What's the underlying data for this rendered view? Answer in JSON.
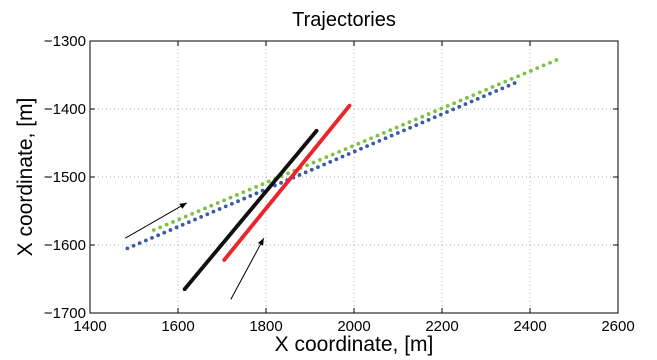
{
  "chart_data": {
    "type": "scatter",
    "title": "Trajectories",
    "xlabel": "X coordinate, [m]",
    "ylabel": "X coordinate, [m]",
    "xlim": [
      1400,
      2600
    ],
    "ylim": [
      -1700,
      -1300
    ],
    "xticks": [
      1400,
      1600,
      1800,
      2000,
      2200,
      2400,
      2600
    ],
    "yticks": [
      -1300,
      -1400,
      -1500,
      -1600,
      -1700
    ],
    "xtick_labels": [
      "1400",
      "1600",
      "1800",
      "2000",
      "2200",
      "2400",
      "2600"
    ],
    "ytick_labels": [
      "−1300",
      "−1400",
      "−1500",
      "−1600",
      "−1700"
    ],
    "grid": true,
    "series": [
      {
        "color": "#3a5aa8",
        "start": [
          1485,
          -1605
        ],
        "end": [
          2365,
          -1362
        ],
        "points": 64
      },
      {
        "color": "#7cc243",
        "start": [
          1545,
          -1578
        ],
        "end": [
          2460,
          -1328
        ],
        "points": 64
      },
      {
        "color": "#111111",
        "start": [
          1615,
          -1665
        ],
        "end": [
          1915,
          -1432
        ],
        "points": 150
      },
      {
        "color": "#e8262b",
        "start": [
          1705,
          -1622
        ],
        "end": [
          1990,
          -1395
        ],
        "points": 150
      }
    ],
    "annotations": [
      {
        "type": "arrow",
        "from": [
          1480,
          -1590
        ],
        "to": [
          1620,
          -1538
        ]
      },
      {
        "type": "arrow",
        "from": [
          1720,
          -1680
        ],
        "to": [
          1795,
          -1590
        ]
      }
    ]
  }
}
